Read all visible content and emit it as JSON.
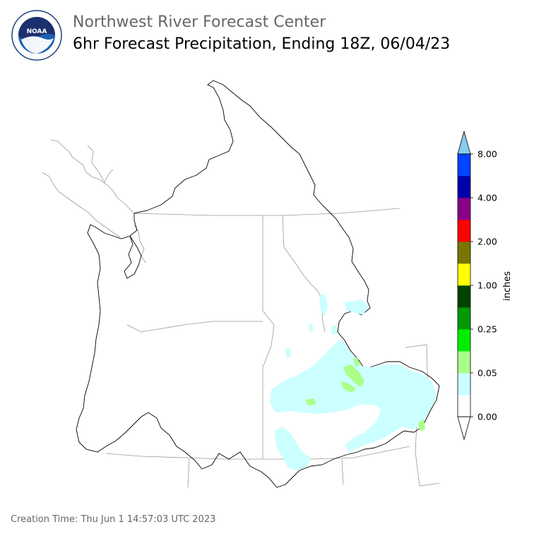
{
  "header": {
    "title": "Northwest River Forecast Center",
    "subtitle": "6hr Forecast Precipitation, Ending 18Z, 06/04/23",
    "logo_text": "NOAA"
  },
  "colorbar": {
    "unit_label": "inches",
    "tick_labels": [
      "0.00",
      "0.05",
      "0.25",
      "1.00",
      "2.00",
      "4.00",
      "8.00"
    ],
    "bins": [
      {
        "from": 0.0,
        "color": "#ffffff"
      },
      {
        "from": 0.01,
        "color": "#ccffff"
      },
      {
        "from": 0.05,
        "color": "#aaff88"
      },
      {
        "from": 0.1,
        "color": "#00ee00"
      },
      {
        "from": 0.25,
        "color": "#009900"
      },
      {
        "from": 0.5,
        "color": "#004400"
      },
      {
        "from": 1.0,
        "color": "#ffff00"
      },
      {
        "from": 1.5,
        "color": "#777700"
      },
      {
        "from": 2.0,
        "color": "#ff0000"
      },
      {
        "from": 3.0,
        "color": "#880088"
      },
      {
        "from": 4.0,
        "color": "#0000aa"
      },
      {
        "from": 6.0,
        "color": "#0044ff"
      }
    ],
    "over_color": "#88ccee",
    "under_color": "#ffffff"
  },
  "footer": {
    "creation_time": "Creation Time: Thu Jun 1 14:57:03 UTC 2023"
  }
}
